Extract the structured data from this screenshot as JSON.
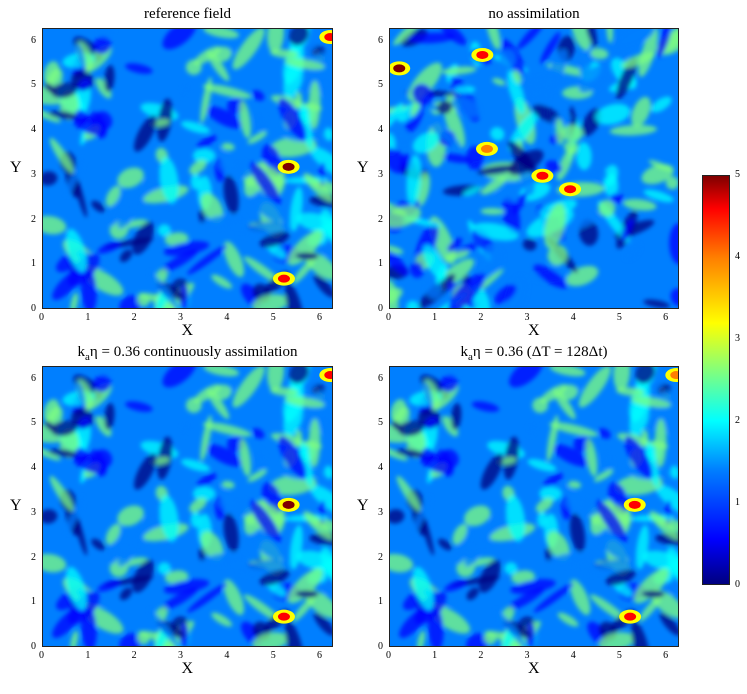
{
  "panels": [
    {
      "title": "reference field",
      "title_parts": null,
      "xlabel": "X",
      "ylabel": "Y"
    },
    {
      "title": "no assimilation",
      "title_parts": null,
      "xlabel": "X",
      "ylabel": "Y"
    },
    {
      "title": "kaη = 0.36 continuously assimilation",
      "title_parts": [
        "k",
        "a",
        "η = 0.36 continuously assimilation"
      ],
      "xlabel": "X",
      "ylabel": "Y"
    },
    {
      "title": "kaη = 0.36 (ΔT = 128Δt)",
      "title_parts": [
        "k",
        "a",
        "η = 0.36 (ΔT = 128Δt)"
      ],
      "xlabel": "X",
      "ylabel": "Y"
    }
  ],
  "chart_data": [
    {
      "type": "heatmap",
      "title": "reference field",
      "xlabel": "X",
      "ylabel": "Y",
      "xlim": [
        0,
        6.28
      ],
      "ylim": [
        0,
        6.28
      ],
      "xticks": [
        0,
        1,
        2,
        3,
        4,
        5,
        6
      ],
      "yticks": [
        0,
        1,
        2,
        3,
        4,
        5,
        6
      ],
      "highlights": [
        {
          "x": 5.3,
          "y": 3.2,
          "value": 4.8
        },
        {
          "x": 5.2,
          "y": 0.7,
          "value": 4.6
        },
        {
          "x": 6.2,
          "y": 6.1,
          "value": 4.2
        }
      ]
    },
    {
      "type": "heatmap",
      "title": "no assimilation",
      "xlabel": "X",
      "ylabel": "Y",
      "xlim": [
        0,
        6.28
      ],
      "ylim": [
        0,
        6.28
      ],
      "xticks": [
        0,
        1,
        2,
        3,
        4,
        5,
        6
      ],
      "yticks": [
        0,
        1,
        2,
        3,
        4,
        5,
        6
      ],
      "highlights": [
        {
          "x": 0.2,
          "y": 5.4,
          "value": 4.9
        },
        {
          "x": 3.9,
          "y": 2.7,
          "value": 4.6
        },
        {
          "x": 2.0,
          "y": 5.7,
          "value": 4.4
        },
        {
          "x": 3.3,
          "y": 3.0,
          "value": 4.3
        },
        {
          "x": 2.1,
          "y": 3.6,
          "value": 4.0
        }
      ]
    },
    {
      "type": "heatmap",
      "title": "kaη = 0.36 continuously assimilation",
      "xlabel": "X",
      "ylabel": "Y",
      "xlim": [
        0,
        6.28
      ],
      "ylim": [
        0,
        6.28
      ],
      "xticks": [
        0,
        1,
        2,
        3,
        4,
        5,
        6
      ],
      "yticks": [
        0,
        1,
        2,
        3,
        4,
        5,
        6
      ],
      "highlights": [
        {
          "x": 5.3,
          "y": 3.2,
          "value": 4.8
        },
        {
          "x": 5.2,
          "y": 0.7,
          "value": 4.6
        },
        {
          "x": 6.2,
          "y": 6.1,
          "value": 4.2
        }
      ]
    },
    {
      "type": "heatmap",
      "title": "kaη = 0.36 (ΔT = 128Δt)",
      "xlabel": "X",
      "ylabel": "Y",
      "xlim": [
        0,
        6.28
      ],
      "ylim": [
        0,
        6.28
      ],
      "xticks": [
        0,
        1,
        2,
        3,
        4,
        5,
        6
      ],
      "yticks": [
        0,
        1,
        2,
        3,
        4,
        5,
        6
      ],
      "highlights": [
        {
          "x": 5.3,
          "y": 3.2,
          "value": 4.6
        },
        {
          "x": 5.2,
          "y": 0.7,
          "value": 4.5
        },
        {
          "x": 6.2,
          "y": 6.1,
          "value": 4.0
        }
      ]
    }
  ],
  "colorbar": {
    "min": 0,
    "max": 5,
    "ticks": [
      0,
      1,
      2,
      3,
      4,
      5
    ],
    "colormap": "jet",
    "colors": [
      "#00007f",
      "#0000ff",
      "#007fff",
      "#00ffff",
      "#7fff7f",
      "#ffff00",
      "#ff7f00",
      "#ff0000",
      "#7f0000"
    ]
  }
}
